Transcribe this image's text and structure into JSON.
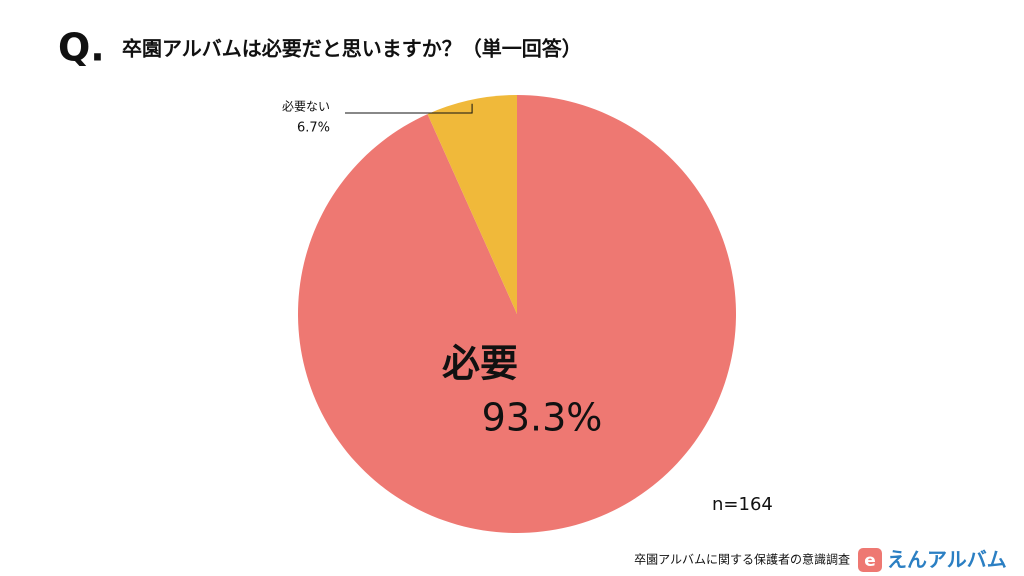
{
  "chart_data": {
    "type": "pie",
    "question_marker": "Q.",
    "title": "卒園アルバムは必要だと思いますか？（単一回答）",
    "categories": [
      "必要",
      "必要ない"
    ],
    "values": [
      93.3,
      6.7
    ],
    "value_labels": [
      "93.3%",
      "6.7%"
    ],
    "colors": [
      "#ee7872",
      "#f0b93a"
    ],
    "note": "n=164"
  },
  "footer": {
    "source": "卒園アルバムに関する保護者の意識調査",
    "logo_icon": "e",
    "logo_text": "えんアルバム"
  }
}
